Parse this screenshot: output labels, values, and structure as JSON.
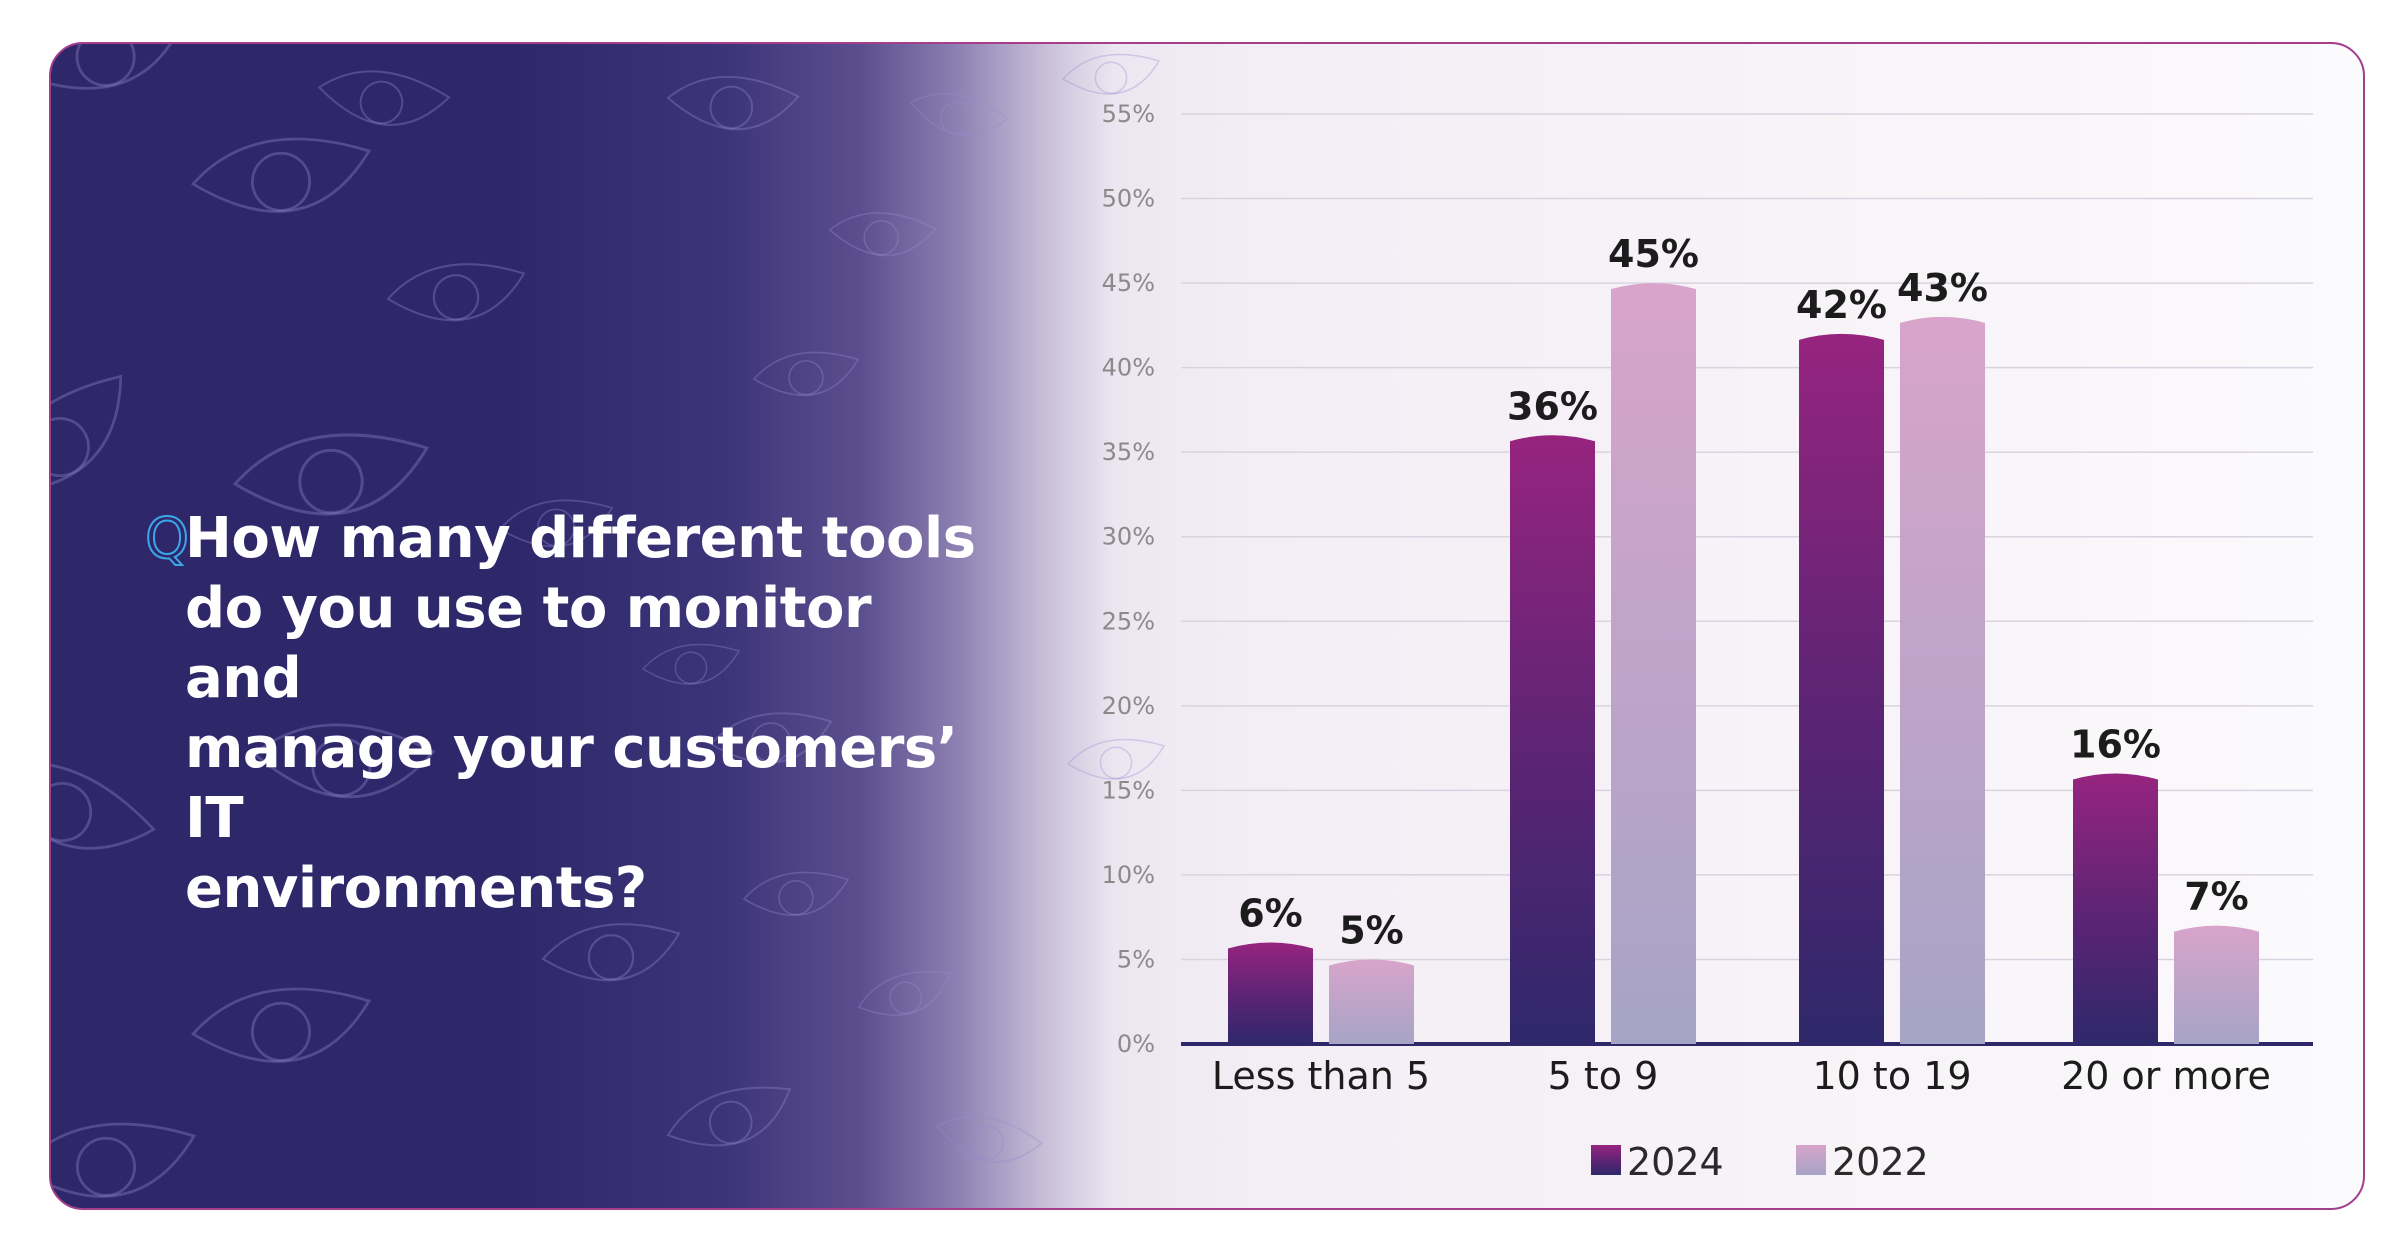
{
  "question": {
    "marker": "Q",
    "text": "How many different tools do you use to monitor and manage your customers’ IT environments?",
    "lines": [
      "How many different tools",
      "do you use to monitor and",
      "manage your customers’ IT",
      "environments?"
    ]
  },
  "colors": {
    "background_dark": "#2e286a",
    "accent_border": "#a23e8c",
    "series_2024_top": "#96247f",
    "series_2024_bottom": "#2e286a",
    "series_2022_top": "#d8a4cb",
    "series_2022_bottom": "#a6a4c6",
    "axis_line": "#2e286a",
    "marker": "#3aa8e8"
  },
  "chart_data": {
    "type": "bar",
    "title": "",
    "xlabel": "",
    "ylabel": "",
    "categories": [
      "Less than 5",
      "5 to 9",
      "10 to 19",
      "20 or more"
    ],
    "series": [
      {
        "name": "2024",
        "values": [
          6,
          36,
          42,
          16
        ]
      },
      {
        "name": "2022",
        "values": [
          5,
          45,
          43,
          7
        ]
      }
    ],
    "value_suffix": "%",
    "ylim": [
      0,
      55
    ],
    "yticks": [
      0,
      5,
      10,
      15,
      20,
      25,
      30,
      35,
      40,
      45,
      50,
      55
    ],
    "ytick_labels": [
      "0%",
      "5%",
      "10%",
      "15%",
      "20%",
      "25%",
      "30%",
      "35%",
      "40%",
      "45%",
      "50%",
      "55%"
    ],
    "grid": true,
    "legend_position": "bottom-center"
  }
}
